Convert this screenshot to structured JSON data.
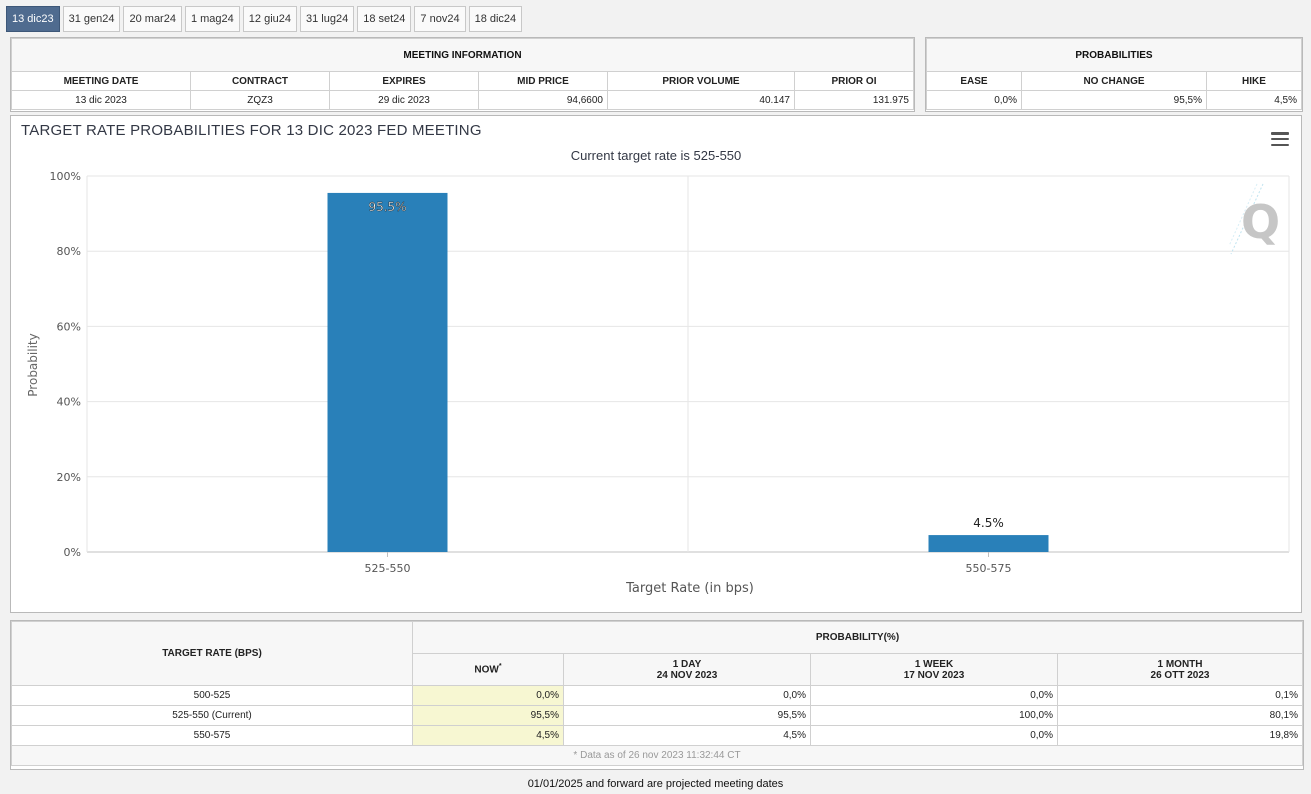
{
  "tabs": [
    "13 dic23",
    "31 gen24",
    "20 mar24",
    "1 mag24",
    "12 giu24",
    "31 lug24",
    "18 set24",
    "7 nov24",
    "18 dic24"
  ],
  "meeting_info": {
    "title": "MEETING INFORMATION",
    "headers": [
      "MEETING DATE",
      "CONTRACT",
      "EXPIRES",
      "MID PRICE",
      "PRIOR VOLUME",
      "PRIOR OI"
    ],
    "values": [
      "13 dic 2023",
      "ZQZ3",
      "29 dic 2023",
      "94,6600",
      "40.147",
      "131.975"
    ]
  },
  "probabilities": {
    "title": "PROBABILITIES",
    "headers": [
      "EASE",
      "NO CHANGE",
      "HIKE"
    ],
    "values": [
      "0,0%",
      "95,5%",
      "4,5%"
    ]
  },
  "chart_data": {
    "type": "bar",
    "title": "TARGET RATE PROBABILITIES FOR 13 DIC 2023 FED MEETING",
    "subtitle": "Current target rate is 525-550",
    "xlabel": "Target Rate (in bps)",
    "ylabel": "Probability",
    "categories": [
      "525-550",
      "550-575"
    ],
    "values": [
      95.5,
      4.5
    ],
    "data_labels": [
      "95.5%",
      "4.5%"
    ],
    "ylim": [
      0,
      100
    ],
    "yticks": [
      "0%",
      "20%",
      "40%",
      "60%",
      "80%",
      "100%"
    ],
    "ytick_values": [
      0,
      20,
      40,
      60,
      80,
      100
    ],
    "bar_color": "#2980b9",
    "grid": true,
    "watermark": "Q"
  },
  "bottom_table": {
    "col1_header": "TARGET RATE (BPS)",
    "group_header": "PROBABILITY(%)",
    "sub_headers": [
      {
        "line1": "NOW",
        "line2": ""
      },
      {
        "line1": "1 DAY",
        "line2": "24 NOV 2023"
      },
      {
        "line1": "1 WEEK",
        "line2": "17 NOV 2023"
      },
      {
        "line1": "1 MONTH",
        "line2": "26 OTT 2023"
      }
    ],
    "now_marker": "*",
    "rows": [
      {
        "rate": "500-525",
        "values": [
          "0,0%",
          "0,0%",
          "0,0%",
          "0,1%"
        ]
      },
      {
        "rate": "525-550 (Current)",
        "values": [
          "95,5%",
          "95,5%",
          "100,0%",
          "80,1%"
        ]
      },
      {
        "rate": "550-575",
        "values": [
          "4,5%",
          "4,5%",
          "0,0%",
          "19,8%"
        ]
      }
    ],
    "data_as_of": "* Data as of 26 nov 2023 11:32:44 CT"
  },
  "footer_note": "01/01/2025 and forward are projected meeting dates"
}
